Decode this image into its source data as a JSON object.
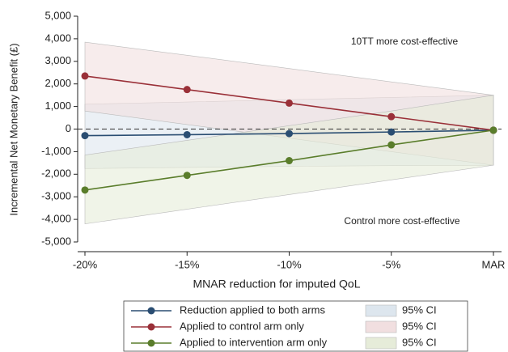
{
  "chart_data": {
    "type": "line",
    "x_label": "MNAR reduction for imputed QoL",
    "y_label": "Incremental Net Monetary Benefit (£)",
    "categories": [
      "-20%",
      "-15%",
      "-10%",
      "-5%",
      "MAR"
    ],
    "ylim": [
      -5000,
      5000
    ],
    "yticks": [
      {
        "value": 5000,
        "label": "5,000"
      },
      {
        "value": 4000,
        "label": "4,000"
      },
      {
        "value": 3000,
        "label": "3,000"
      },
      {
        "value": 2000,
        "label": "2,000"
      },
      {
        "value": 1000,
        "label": "1,000"
      },
      0,
      {
        "value": -1000,
        "label": "-1,000"
      },
      {
        "value": -2000,
        "label": "-2,000"
      },
      {
        "value": -3000,
        "label": "-3,000"
      },
      {
        "value": -4000,
        "label": "-4,000"
      },
      {
        "value": -5000,
        "label": "-5,000"
      }
    ],
    "reference_line": 0,
    "annotations": [
      "10TT more cost-effective",
      "Control more cost-effective"
    ],
    "series": [
      {
        "name": "Reduction applied to both arms",
        "color": "#2a4d72",
        "band_color": "#dde6ee",
        "ci_label": "95% CI",
        "values": [
          -290,
          -250,
          -200,
          -130,
          -50
        ],
        "ci_upper": [
          1100,
          1200,
          1300,
          1400,
          1500
        ],
        "ci_lower": [
          -1750,
          -1700,
          -1650,
          -1620,
          -1600
        ]
      },
      {
        "name": "Applied to control arm only",
        "color": "#9a3038",
        "band_color": "#f1dfe0",
        "ci_label": "95% CI",
        "values": [
          2350,
          1750,
          1150,
          550,
          -50
        ],
        "ci_upper": [
          3850,
          3270,
          2680,
          2090,
          1500
        ],
        "ci_lower": [
          800,
          200,
          -400,
          -1000,
          -1600
        ]
      },
      {
        "name": "Applied to intervention arm only",
        "color": "#5a7d2b",
        "band_color": "#e6ecd9",
        "ci_label": "95% CI",
        "values": [
          -2700,
          -2050,
          -1400,
          -700,
          -50
        ],
        "ci_upper": [
          -1150,
          -500,
          150,
          800,
          1500
        ],
        "ci_lower": [
          -4200,
          -3550,
          -2900,
          -2250,
          -1600
        ]
      }
    ]
  }
}
